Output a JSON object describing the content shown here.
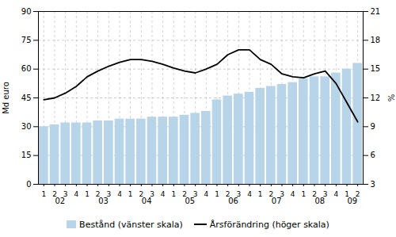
{
  "chart_data": {
    "type": "bar",
    "categories": [
      "1",
      "2",
      "3",
      "4",
      "1",
      "2",
      "3",
      "4",
      "1",
      "2",
      "3",
      "4",
      "1",
      "2",
      "3",
      "4",
      "1",
      "2",
      "3",
      "4",
      "1",
      "2",
      "3",
      "4",
      "1",
      "2",
      "3",
      "4",
      "1",
      "2"
    ],
    "series": [
      {
        "name": "Bestånd (vänster skala)",
        "type": "bar",
        "color": "#b8d4e8",
        "values": [
          30,
          31,
          32,
          32,
          32,
          33,
          33,
          34,
          34,
          34,
          35,
          35,
          35,
          36,
          37,
          38,
          44,
          46,
          47,
          48,
          50,
          51,
          52,
          53,
          55,
          56,
          56,
          58,
          60,
          63
        ]
      },
      {
        "name": "Årsförändring (höger skala)",
        "type": "line",
        "color": "#000000",
        "axis": "y2",
        "values": [
          11.8,
          12.0,
          12.5,
          13.2,
          14.2,
          14.8,
          15.3,
          15.7,
          16.0,
          16.0,
          15.8,
          15.5,
          15.1,
          14.8,
          14.6,
          15.0,
          15.5,
          16.5,
          17.0,
          17.0,
          16.0,
          15.5,
          14.5,
          14.2,
          14.1,
          14.5,
          14.8,
          13.5,
          11.5,
          9.5
        ]
      }
    ],
    "ylabel": "Md euro",
    "y2label": "%",
    "ylim": [
      0,
      90
    ],
    "yticks": [
      0,
      15,
      30,
      45,
      60,
      75,
      90
    ],
    "y2lim": [
      3,
      21
    ],
    "y2ticks": [
      3,
      6,
      9,
      12,
      15,
      18,
      21
    ],
    "grid": true,
    "legend": "bottom",
    "annotations": [
      {
        "text": "02",
        "x": 1.5
      },
      {
        "text": "03",
        "x": 5.5
      },
      {
        "text": "04",
        "x": 9.5
      },
      {
        "text": "05",
        "x": 13.5
      },
      {
        "text": "06",
        "x": 17.5
      },
      {
        "text": "07",
        "x": 21.5
      },
      {
        "text": "08",
        "x": 25.5
      },
      {
        "text": "09",
        "x": 28.5
      }
    ]
  }
}
